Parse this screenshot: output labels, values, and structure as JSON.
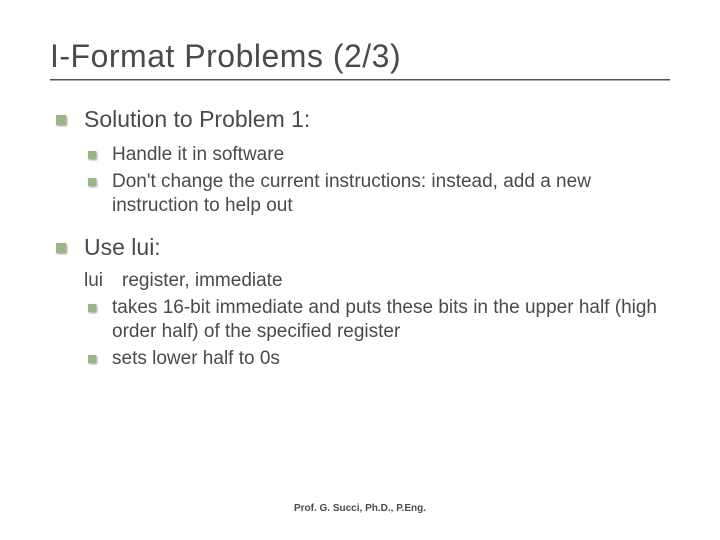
{
  "slide": {
    "title": "I-Format Problems (2/3)",
    "items": [
      {
        "label": "Solution to Problem 1:",
        "sub": [
          "Handle it in software",
          "Don't change the current instructions: instead, add a new instruction to help out"
        ]
      },
      {
        "label": "Use lui:",
        "code": "lui register, immediate",
        "sub": [
          "takes 16-bit immediate and puts these bits in the upper half (high order half) of the specified register",
          "sets lower half to 0s"
        ]
      }
    ],
    "footer": "Prof. G. Succi, Ph.D., P.Eng."
  },
  "style": {
    "background_color": "#ffffff",
    "text_color": "#4a4a4a",
    "bullet_color": "#9bb589",
    "title_fontsize": 32,
    "level1_fontsize": 23,
    "level2_fontsize": 19,
    "footer_fontsize": 10,
    "underline_color_top": "#555555",
    "underline_color_bottom": "#aaaaaa"
  }
}
